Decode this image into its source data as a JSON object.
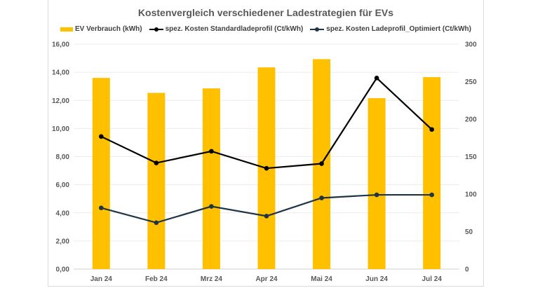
{
  "chart_data": {
    "type": "bar",
    "title": "Kostenvergleich verschiedener Ladestrategien für EVs",
    "categories": [
      "Jan 24",
      "Feb 24",
      "Mrz 24",
      "Apr 24",
      "Mai 24",
      "Jun 24",
      "Jul 24"
    ],
    "y_left": {
      "ylim": [
        0,
        16
      ],
      "ticks": [
        "0,00",
        "2,00",
        "4,00",
        "6,00",
        "8,00",
        "10,00",
        "12,00",
        "14,00",
        "16,00"
      ],
      "tick_values": [
        0,
        2,
        4,
        6,
        8,
        10,
        12,
        14,
        16
      ]
    },
    "y_right": {
      "ylim": [
        0,
        300
      ],
      "ticks": [
        "0",
        "50",
        "100",
        "150",
        "200",
        "250",
        "300"
      ],
      "tick_values": [
        0,
        50,
        100,
        150,
        200,
        250,
        300
      ]
    },
    "grid": true,
    "legend_position": "top",
    "series": [
      {
        "name": "EV Verbrauch (kWh)",
        "type": "bar",
        "axis": "right",
        "color": "#ffc000",
        "values": [
          255,
          235,
          241,
          269,
          280,
          228,
          256
        ]
      },
      {
        "name": "spez. Kosten Standardladeprofil (Ct/kWh)",
        "type": "line",
        "axis": "left",
        "color": "#000000",
        "values": [
          9.43,
          7.55,
          8.38,
          7.17,
          7.5,
          13.59,
          9.93
        ]
      },
      {
        "name": "spez. Kosten Ladeprofil_Optimiert (Ct/kWh)",
        "type": "line",
        "axis": "left",
        "color": "#1f3447",
        "values": [
          4.35,
          3.3,
          4.46,
          3.77,
          5.06,
          5.28,
          5.28
        ]
      }
    ]
  }
}
